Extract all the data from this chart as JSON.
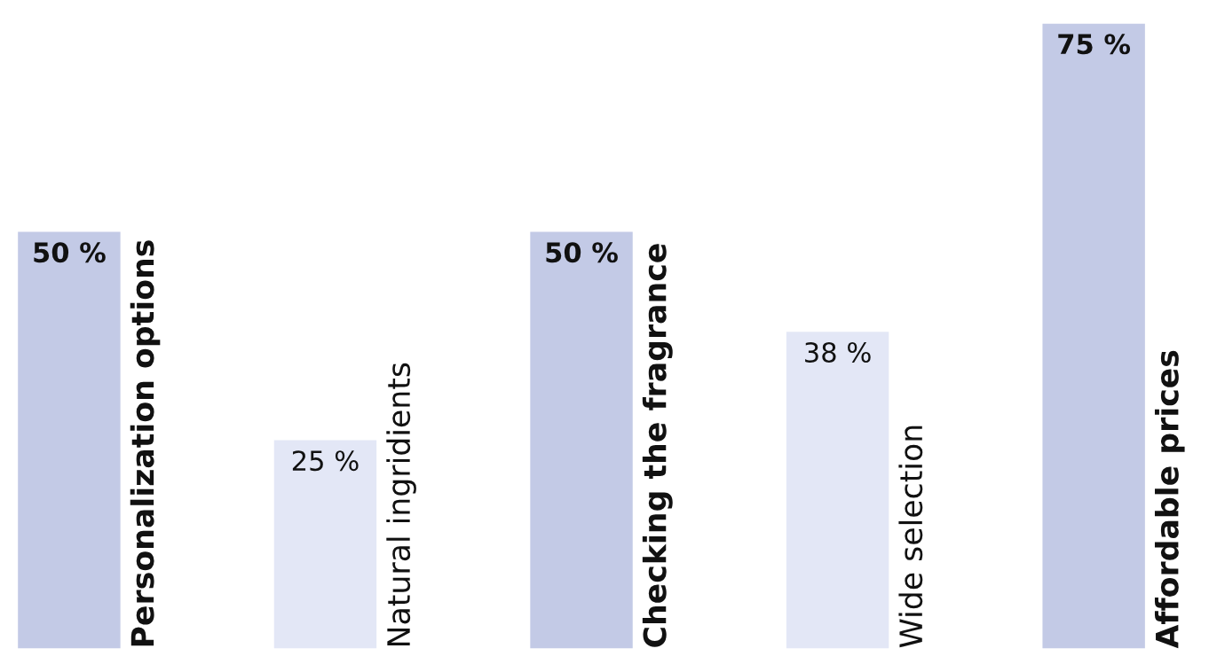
{
  "chart_data": {
    "type": "bar",
    "categories": [
      "Personalization options",
      "Natural ingridients",
      "Checking the fragrance",
      "Wide selection",
      "Affordable prices"
    ],
    "values": [
      50,
      25,
      50,
      38,
      75
    ],
    "value_labels": [
      "50 %",
      "25 %",
      "50 %",
      "38 %",
      "75 %"
    ],
    "colors": [
      "#c3cae6",
      "#e3e7f6",
      "#c3cae6",
      "#e3e7f6",
      "#c3cae6"
    ]
  }
}
